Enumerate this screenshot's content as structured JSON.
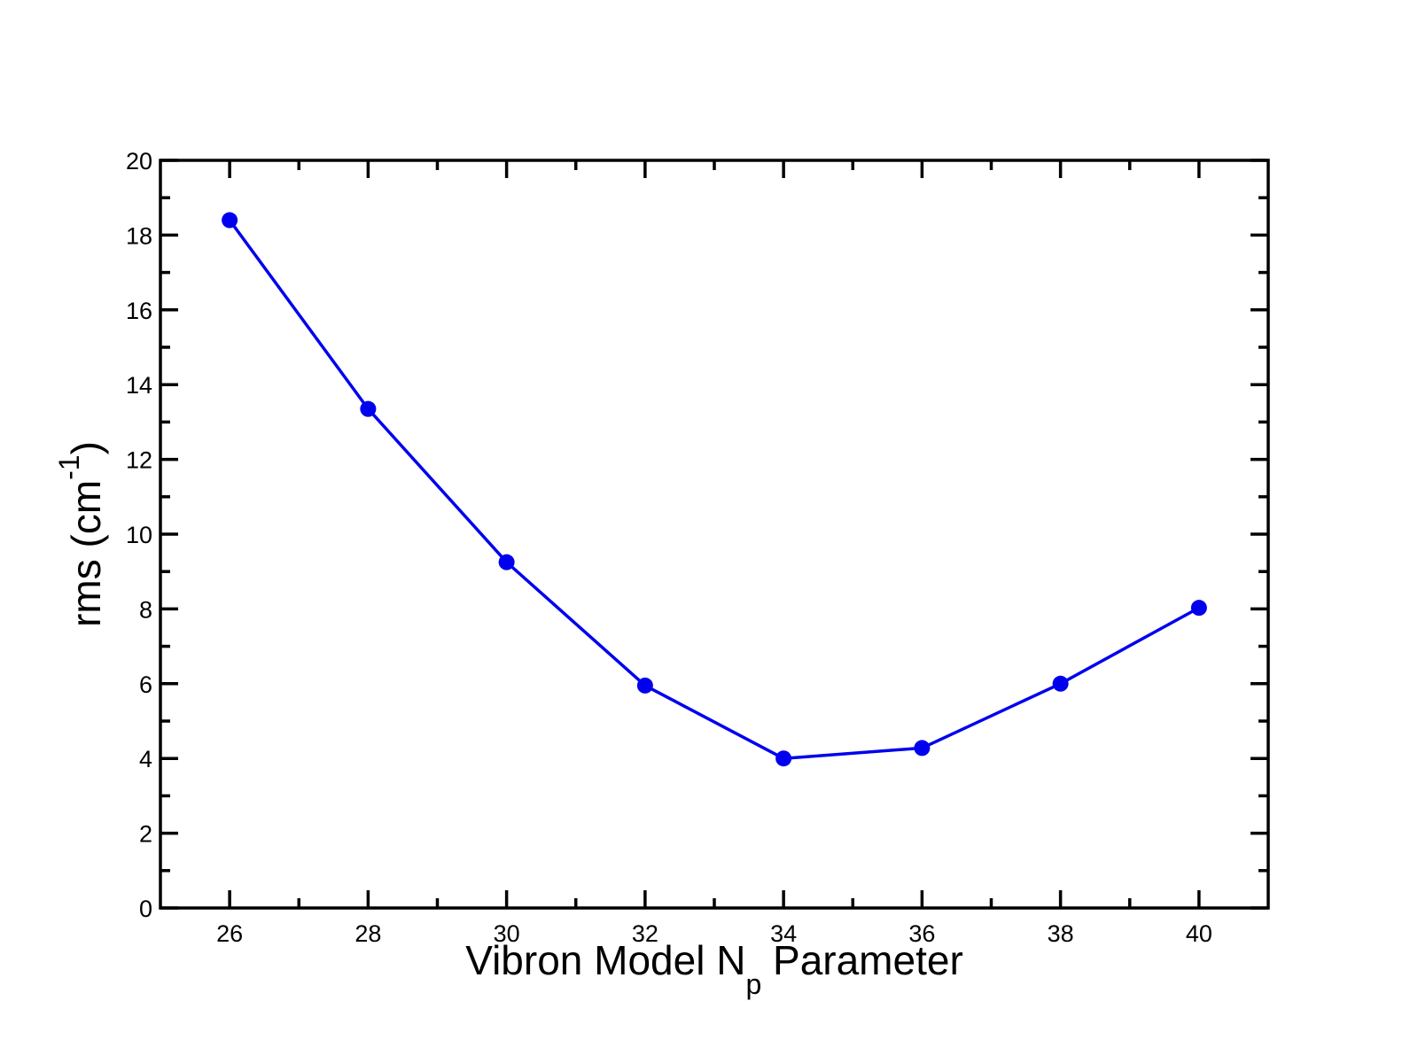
{
  "chart_data": {
    "type": "line",
    "title": "",
    "xlabel": "Vibron Model N",
    "xlabel_subscript": "p",
    "xlabel_suffix": " Parameter",
    "ylabel": "rms (cm",
    "ylabel_superscript": "-1",
    "ylabel_suffix": ")",
    "xlim": [
      25,
      41
    ],
    "ylim": [
      0,
      20
    ],
    "xticks": [
      26,
      28,
      30,
      32,
      34,
      36,
      38,
      40
    ],
    "yticks": [
      0,
      2,
      4,
      6,
      8,
      10,
      12,
      14,
      16,
      18,
      20
    ],
    "grid": false,
    "legend": "none",
    "series": [
      {
        "color": "#0000ee",
        "marker": "circle",
        "x": [
          26,
          28,
          30,
          32,
          34,
          36,
          38,
          40
        ],
        "y": [
          18.4,
          13.35,
          9.25,
          5.95,
          4.0,
          4.28,
          6.0,
          8.03
        ]
      }
    ]
  }
}
